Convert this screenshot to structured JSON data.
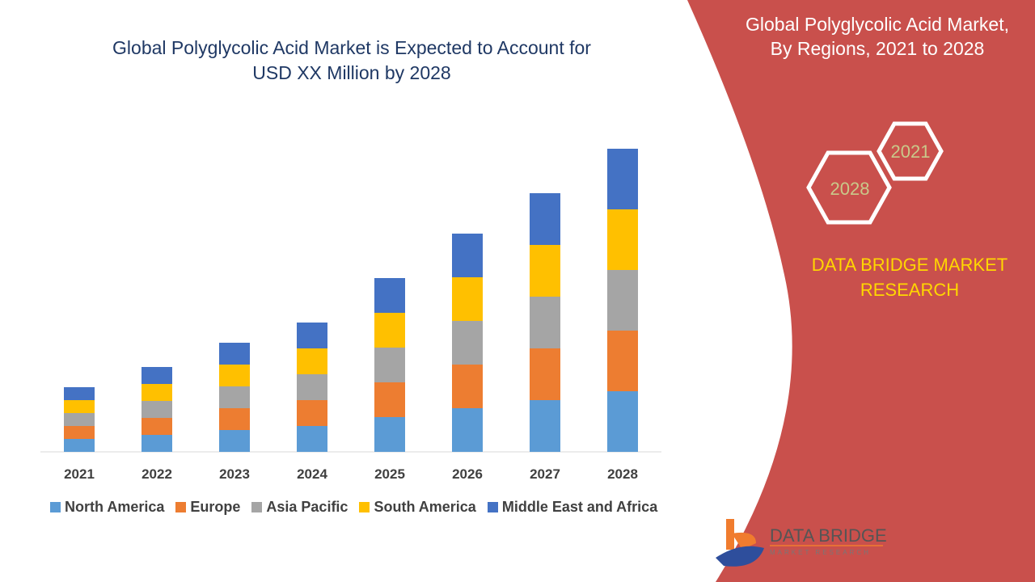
{
  "title_line1": "Global Polyglycolic Acid Market is Expected to Account for",
  "title_line2": "USD XX Million by 2028",
  "side_panel": {
    "title_line1": "Global Polyglycolic Acid Market,",
    "title_line2": "By Regions, 2021 to 2028",
    "hex_start": "2021",
    "hex_end": "2028",
    "brand_line1": "DATA BRIDGE MARKET",
    "brand_line2": "RESEARCH",
    "logo_text": "DATA BRIDGE",
    "logo_subtext": "MARKET RESEARCH",
    "panel_color": "#c9504c"
  },
  "chart_data": {
    "type": "bar",
    "stacked": true,
    "title": "Global Polyglycolic Acid Market is Expected to Account for USD XX Million by 2028",
    "categories": [
      "2021",
      "2022",
      "2023",
      "2024",
      "2025",
      "2026",
      "2027",
      "2028"
    ],
    "series": [
      {
        "name": "North America",
        "color": "#5b9bd5",
        "values": [
          16,
          21,
          27,
          32,
          43,
          54,
          64,
          75
        ]
      },
      {
        "name": "Europe",
        "color": "#ed7d31",
        "values": [
          16,
          21,
          27,
          32,
          43,
          54,
          64,
          75
        ]
      },
      {
        "name": "Asia Pacific",
        "color": "#a5a5a5",
        "values": [
          16,
          21,
          27,
          32,
          43,
          54,
          64,
          75
        ]
      },
      {
        "name": "South America",
        "color": "#ffc000",
        "values": [
          16,
          21,
          27,
          32,
          43,
          54,
          64,
          75
        ]
      },
      {
        "name": "Middle East and Africa",
        "color": "#4472c4",
        "values": [
          16,
          21,
          27,
          32,
          43,
          54,
          64,
          75
        ]
      }
    ],
    "legend_position": "bottom",
    "grid": false,
    "y_axis_shown": false
  }
}
